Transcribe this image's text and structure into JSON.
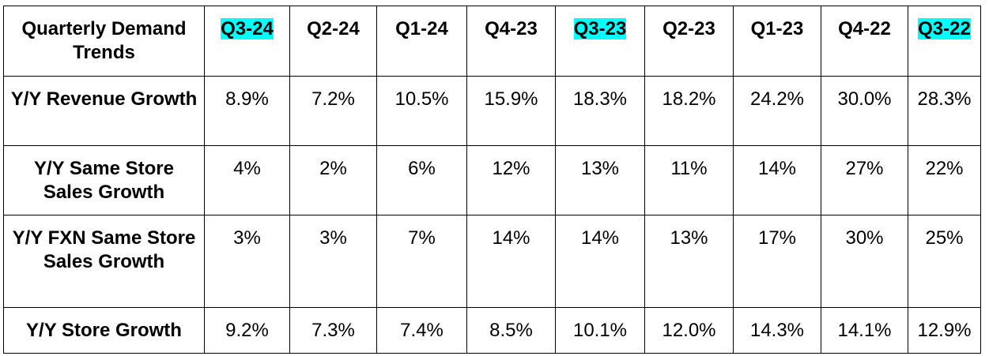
{
  "table": {
    "corner_label": "Quarterly Demand Trends",
    "highlight_color": "#00ffff",
    "columns": [
      {
        "label": "Q3-24",
        "highlighted": true
      },
      {
        "label": "Q2-24",
        "highlighted": false
      },
      {
        "label": "Q1-24",
        "highlighted": false
      },
      {
        "label": "Q4-23",
        "highlighted": false
      },
      {
        "label": "Q3-23",
        "highlighted": true
      },
      {
        "label": "Q2-23",
        "highlighted": false
      },
      {
        "label": "Q1-23",
        "highlighted": false
      },
      {
        "label": "Q4-22",
        "highlighted": false
      },
      {
        "label": "Q3-22",
        "highlighted": true
      }
    ],
    "rows": [
      {
        "label": "Y/Y Revenue Growth",
        "values": [
          "8.9%",
          "7.2%",
          "10.5%",
          "15.9%",
          "18.3%",
          "18.2%",
          "24.2%",
          "30.0%",
          "28.3%"
        ]
      },
      {
        "label": "Y/Y Same Store Sales Growth",
        "values": [
          "4%",
          "2%",
          "6%",
          "12%",
          "13%",
          "11%",
          "14%",
          "27%",
          "22%"
        ]
      },
      {
        "label": "Y/Y FXN Same Store Sales Growth",
        "values": [
          "3%",
          "3%",
          "7%",
          "14%",
          "14%",
          "13%",
          "17%",
          "30%",
          "25%"
        ]
      },
      {
        "label": "Y/Y Store Growth",
        "values": [
          "9.2%",
          "7.3%",
          "7.4%",
          "8.5%",
          "10.1%",
          "12.0%",
          "14.3%",
          "14.1%",
          "12.9%"
        ]
      }
    ]
  }
}
